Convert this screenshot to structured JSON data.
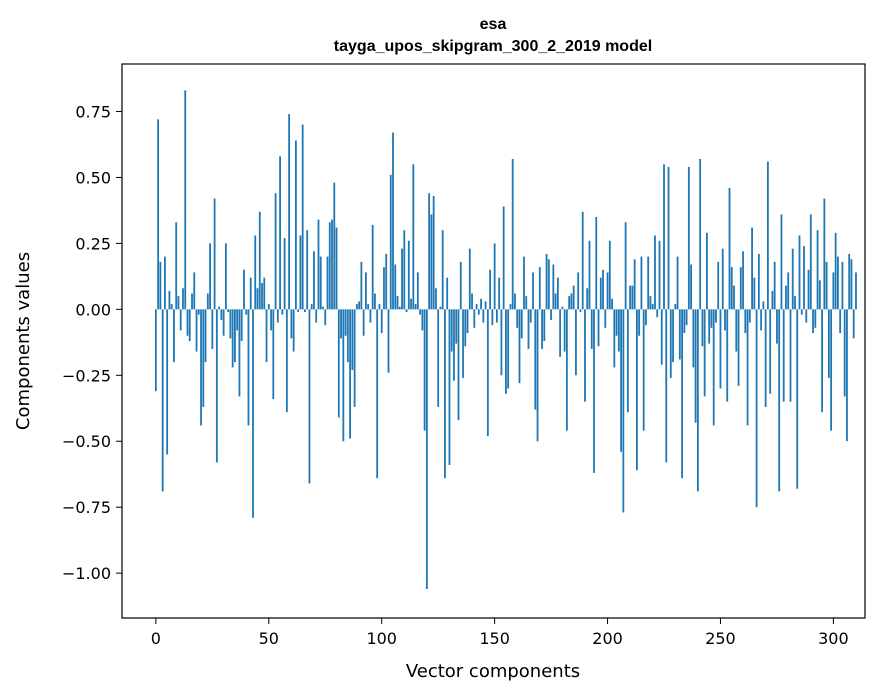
{
  "chart_data": {
    "type": "bar",
    "title": "esa",
    "subtitle": "tayga_upos_skipgram_300_2_2019 model",
    "xlabel": "Vector components",
    "ylabel": "Components values",
    "xlim": [
      -15,
      314
    ],
    "ylim": [
      -1.17,
      0.93
    ],
    "xticks": [
      0,
      50,
      100,
      150,
      200,
      250,
      300
    ],
    "yticks": [
      -1.0,
      -0.75,
      -0.5,
      -0.25,
      0.0,
      0.25,
      0.5,
      0.75
    ],
    "ytick_labels": [
      "−1.00",
      "−0.75",
      "−0.50",
      "−0.25",
      "0.00",
      "0.25",
      "0.50",
      "0.75"
    ],
    "grid": false,
    "bar_color": "#1f77b4",
    "values": [
      -0.31,
      0.72,
      0.18,
      -0.69,
      0.2,
      -0.55,
      0.07,
      0.02,
      -0.2,
      0.33,
      0.05,
      -0.08,
      0.08,
      0.83,
      -0.1,
      -0.12,
      0.06,
      0.14,
      -0.16,
      -0.02,
      -0.44,
      -0.37,
      -0.2,
      0.06,
      0.25,
      -0.15,
      0.42,
      -0.58,
      0.01,
      -0.04,
      -0.1,
      0.25,
      -0.01,
      -0.11,
      -0.22,
      -0.2,
      -0.08,
      -0.33,
      -0.12,
      0.15,
      -0.02,
      -0.44,
      0.12,
      -0.79,
      0.28,
      0.08,
      0.37,
      0.1,
      0.12,
      -0.2,
      0.02,
      -0.08,
      -0.34,
      0.44,
      -0.05,
      0.58,
      -0.02,
      0.27,
      -0.39,
      0.74,
      -0.11,
      -0.16,
      0.64,
      -0.01,
      0.28,
      0.7,
      -0.01,
      0.3,
      -0.66,
      0.02,
      0.22,
      -0.05,
      0.34,
      0.2,
      0.01,
      -0.06,
      0.2,
      0.33,
      0.34,
      0.48,
      0.31,
      -0.41,
      -0.11,
      -0.5,
      -0.1,
      -0.2,
      -0.49,
      -0.23,
      -0.37,
      0.02,
      0.03,
      0.18,
      -0.1,
      0.14,
      0.02,
      -0.05,
      0.32,
      0.06,
      -0.64,
      0.02,
      -0.09,
      0.16,
      0.21,
      -0.24,
      0.51,
      0.67,
      0.17,
      0.05,
      0.01,
      0.23,
      0.3,
      -0.01,
      0.26,
      0.04,
      0.55,
      0.02,
      0.14,
      -0.02,
      -0.08,
      -0.46,
      -1.06,
      0.44,
      0.36,
      0.43,
      0.08,
      -0.37,
      0.01,
      0.3,
      -0.64,
      0.12,
      -0.59,
      -0.16,
      -0.27,
      -0.13,
      -0.42,
      0.18,
      -0.26,
      -0.14,
      -0.09,
      0.23,
      0.06,
      -0.07,
      0.02,
      -0.02,
      0.04,
      -0.05,
      0.03,
      -0.48,
      0.15,
      -0.06,
      0.25,
      -0.05,
      0.12,
      -0.25,
      0.39,
      -0.32,
      -0.3,
      0.02,
      0.57,
      0.06,
      -0.07,
      -0.28,
      -0.11,
      0.2,
      0.05,
      -0.15,
      -0.05,
      0.14,
      -0.38,
      -0.5,
      0.16,
      -0.15,
      -0.12,
      0.21,
      0.19,
      -0.04,
      0.17,
      0.06,
      0.12,
      -0.18,
      0.01,
      -0.16,
      -0.46,
      0.05,
      0.06,
      0.09,
      -0.25,
      0.14,
      -0.01,
      0.37,
      -0.35,
      0.08,
      0.26,
      -0.15,
      -0.62,
      0.35,
      -0.14,
      0.12,
      0.15,
      -0.07,
      0.14,
      0.26,
      0.04,
      -0.22,
      -0.1,
      -0.16,
      -0.54,
      -0.77,
      0.33,
      -0.39,
      0.09,
      0.09,
      0.19,
      -0.61,
      -0.1,
      0.2,
      -0.46,
      -0.06,
      0.2,
      0.05,
      0.02,
      0.28,
      -0.03,
      0.26,
      -0.21,
      0.55,
      -0.58,
      0.54,
      -0.26,
      -0.2,
      0.02,
      0.2,
      -0.19,
      -0.64,
      -0.09,
      -0.06,
      0.54,
      0.17,
      -0.22,
      -0.43,
      -0.69,
      0.57,
      -0.14,
      -0.33,
      0.29,
      -0.13,
      -0.07,
      -0.44,
      -0.05,
      0.18,
      -0.3,
      0.23,
      -0.08,
      -0.35,
      0.46,
      0.16,
      0.09,
      -0.16,
      -0.29,
      0.16,
      0.22,
      -0.09,
      -0.44,
      -0.05,
      0.31,
      0.12,
      -0.75,
      0.21,
      -0.08,
      0.03,
      -0.37,
      0.56,
      -0.32,
      0.07,
      0.18,
      -0.13,
      -0.69,
      0.36,
      -0.35,
      0.09,
      0.14,
      -0.35,
      0.23,
      0.05,
      -0.68,
      0.28,
      -0.02,
      0.24,
      -0.05,
      0.15,
      0.36,
      -0.09,
      -0.07,
      0.3,
      0.11,
      -0.39,
      0.42,
      0.18,
      -0.26,
      -0.46,
      0.14,
      0.29,
      0.2,
      -0.09,
      0.18,
      -0.33,
      -0.5,
      0.21,
      0.19,
      -0.11,
      0.14
    ]
  }
}
